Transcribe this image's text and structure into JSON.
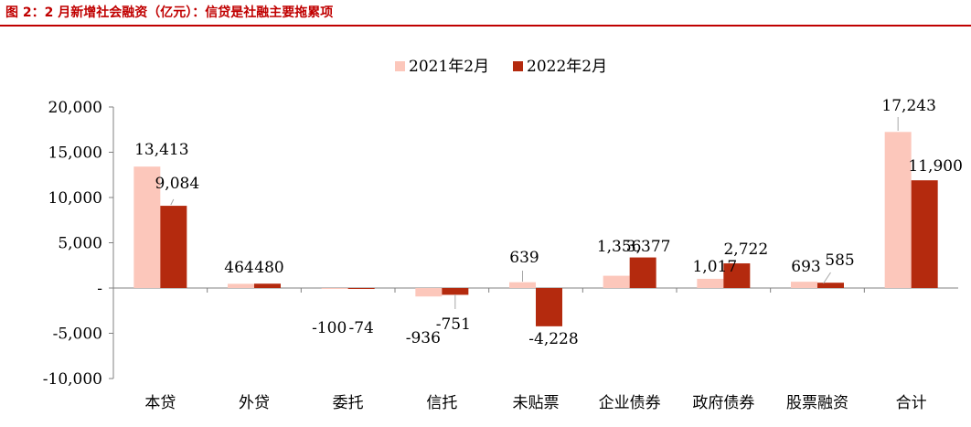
{
  "figure": {
    "title": "图 2：2 月新增社会融资（亿元）：信贷是社融主要拖累项"
  },
  "colors": {
    "title": "#c00000",
    "series_2021": "#fcc7bb",
    "series_2022": "#b42a0e",
    "axis": "#808080",
    "leader": "#a6a6a6"
  },
  "chart_data": {
    "type": "bar",
    "title": "",
    "xlabel": "",
    "ylabel": "",
    "ylim": [
      -10000,
      20000
    ],
    "yticks": [
      20000,
      15000,
      10000,
      5000,
      0,
      -5000,
      -10000
    ],
    "ytick_labels": [
      "20,000",
      "15,000",
      "10,000",
      "5,000",
      "-",
      "-5,000",
      "-10,000"
    ],
    "categories": [
      "本贷",
      "外贷",
      "委托",
      "信托",
      "未贴票",
      "企业债券",
      "政府债券",
      "股票融资",
      "合计"
    ],
    "series": [
      {
        "name": "2021年2月",
        "values": [
          13413,
          464,
          -100,
          -936,
          639,
          1356,
          1017,
          693,
          17243
        ],
        "labels": [
          "13,413",
          "464",
          "-100",
          "-936",
          "639",
          "1,356",
          "1,017",
          "693",
          "17,243"
        ]
      },
      {
        "name": "2022年2月",
        "values": [
          9084,
          480,
          -74,
          -751,
          -4228,
          3377,
          2722,
          585,
          11900
        ],
        "labels": [
          "9,084",
          "480",
          "-74",
          "-751",
          "-4,228",
          "3,377",
          "2,722",
          "585",
          "11,900"
        ]
      }
    ],
    "legend_position": "top-center",
    "grid": false
  }
}
